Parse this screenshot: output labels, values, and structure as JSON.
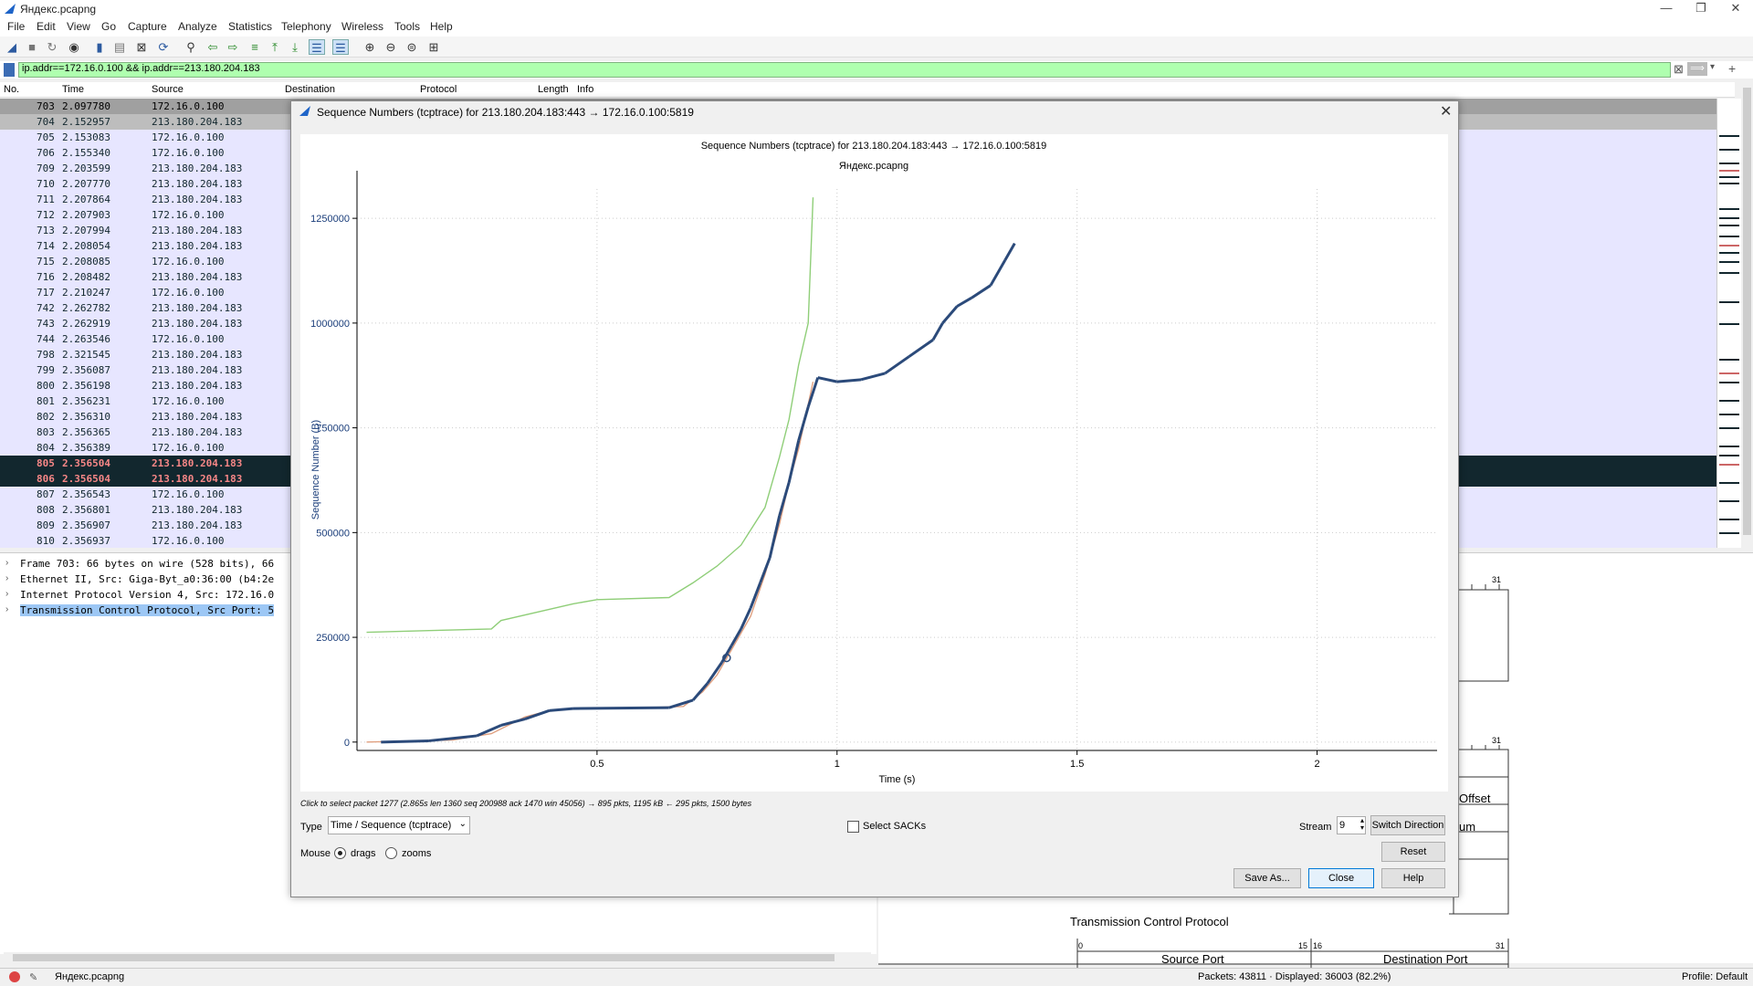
{
  "window": {
    "title": "Яндекс.pcapng"
  },
  "menu": [
    "File",
    "Edit",
    "View",
    "Go",
    "Capture",
    "Analyze",
    "Statistics",
    "Telephony",
    "Wireless",
    "Tools",
    "Help"
  ],
  "filter": {
    "value": "ip.addr==172.16.0.100 && ip.addr==213.180.204.183"
  },
  "packet_list": {
    "columns": [
      "No.",
      "Time",
      "Source",
      "Destination",
      "Protocol",
      "Length",
      "Info"
    ],
    "rows": [
      {
        "no": "703",
        "time": "2.097780",
        "src": "172.16.0.100",
        "style": "gray"
      },
      {
        "no": "704",
        "time": "2.152957",
        "src": "213.180.204.183",
        "style": "gray2"
      },
      {
        "no": "705",
        "time": "2.153083",
        "src": "172.16.0.100",
        "style": ""
      },
      {
        "no": "706",
        "time": "2.155340",
        "src": "172.16.0.100",
        "style": ""
      },
      {
        "no": "709",
        "time": "2.203599",
        "src": "213.180.204.183",
        "style": ""
      },
      {
        "no": "710",
        "time": "2.207770",
        "src": "213.180.204.183",
        "style": ""
      },
      {
        "no": "711",
        "time": "2.207864",
        "src": "213.180.204.183",
        "style": ""
      },
      {
        "no": "712",
        "time": "2.207903",
        "src": "172.16.0.100",
        "style": ""
      },
      {
        "no": "713",
        "time": "2.207994",
        "src": "213.180.204.183",
        "style": ""
      },
      {
        "no": "714",
        "time": "2.208054",
        "src": "213.180.204.183",
        "style": ""
      },
      {
        "no": "715",
        "time": "2.208085",
        "src": "172.16.0.100",
        "style": ""
      },
      {
        "no": "716",
        "time": "2.208482",
        "src": "213.180.204.183",
        "style": ""
      },
      {
        "no": "717",
        "time": "2.210247",
        "src": "172.16.0.100",
        "style": ""
      },
      {
        "no": "742",
        "time": "2.262782",
        "src": "213.180.204.183",
        "style": ""
      },
      {
        "no": "743",
        "time": "2.262919",
        "src": "213.180.204.183",
        "style": ""
      },
      {
        "no": "744",
        "time": "2.263546",
        "src": "172.16.0.100",
        "style": ""
      },
      {
        "no": "798",
        "time": "2.321545",
        "src": "213.180.204.183",
        "style": ""
      },
      {
        "no": "799",
        "time": "2.356087",
        "src": "213.180.204.183",
        "style": ""
      },
      {
        "no": "800",
        "time": "2.356198",
        "src": "213.180.204.183",
        "style": ""
      },
      {
        "no": "801",
        "time": "2.356231",
        "src": "172.16.0.100",
        "style": ""
      },
      {
        "no": "802",
        "time": "2.356310",
        "src": "213.180.204.183",
        "style": ""
      },
      {
        "no": "803",
        "time": "2.356365",
        "src": "213.180.204.183",
        "style": ""
      },
      {
        "no": "804",
        "time": "2.356389",
        "src": "172.16.0.100",
        "style": ""
      },
      {
        "no": "805",
        "time": "2.356504",
        "src": "213.180.204.183",
        "style": "black"
      },
      {
        "no": "806",
        "time": "2.356504",
        "src": "213.180.204.183",
        "style": "black"
      },
      {
        "no": "807",
        "time": "2.356543",
        "src": "172.16.0.100",
        "style": ""
      },
      {
        "no": "808",
        "time": "2.356801",
        "src": "213.180.204.183",
        "style": ""
      },
      {
        "no": "809",
        "time": "2.356907",
        "src": "213.180.204.183",
        "style": ""
      },
      {
        "no": "810",
        "time": "2.356937",
        "src": "172.16.0.100",
        "style": ""
      }
    ]
  },
  "details": [
    "Frame 703: 66 bytes on wire (528 bits), 66",
    "Ethernet II, Src: Giga-Byt_a0:36:00 (b4:2e",
    "Internet Protocol Version 4, Src: 172.16.0",
    "Transmission Control Protocol, Src Port: 5"
  ],
  "bytes_pane": {
    "tcp_label": "Transmission Control Protocol",
    "src_port": "Source Port",
    "dst_port": "Destination Port",
    "offset": "Offset",
    "um": "um",
    "bit0": "0",
    "bit15": "15",
    "bit16": "16",
    "bit31": "31"
  },
  "status": {
    "file": "Яндекс.pcapng",
    "packets": "Packets: 43811 · Displayed: 36003 (82.2%)",
    "profile": "Profile: Default"
  },
  "dialog": {
    "title": "Sequence Numbers (tcptrace) for 213.180.204.183:443 → 172.16.0.100:5819",
    "hint": "Click to select packet 1277 (2.865s len 1360 seq 200988 ack 1470 win 45056) → 895 pkts, 1195 kB ← 295 pkts, 1500 bytes",
    "type_label": "Type",
    "type_value": "Time / Sequence (tcptrace)",
    "select_sacks": "Select SACKs",
    "stream_label": "Stream",
    "stream_value": "9",
    "switch_direction": "Switch Direction",
    "reset": "Reset",
    "mouse_label": "Mouse",
    "drags": "drags",
    "zooms": "zooms",
    "save_as": "Save As...",
    "close": "Close",
    "help": "Help"
  },
  "chart_data": {
    "type": "line",
    "title": "Sequence Numbers (tcptrace) for 213.180.204.183:443 → 172.16.0.100:5819",
    "subtitle": "Яндекс.pcapng",
    "xlabel": "Time (s)",
    "ylabel": "Sequence Number (B)",
    "xlim": [
      0.0,
      2.25
    ],
    "ylim": [
      -20000,
      1320000
    ],
    "xticks": [
      0.5,
      1,
      1.5,
      2
    ],
    "yticks": [
      0,
      250000,
      500000,
      750000,
      1000000,
      1250000
    ],
    "ytick_labels": [
      "0",
      "250000",
      "500000",
      "750000",
      "1000000",
      "1250000"
    ],
    "xtick_labels": [
      "0.5",
      "1",
      "1.5",
      "2"
    ],
    "grid": true,
    "colors": {
      "segments": "#2b4a7a",
      "window": "#8fce78",
      "ack": "#e0a080"
    },
    "series": [
      {
        "name": "",
        "role": "window",
        "points": [
          [
            0.02,
            262000
          ],
          [
            0.15,
            266000
          ],
          [
            0.28,
            270000
          ],
          [
            0.3,
            290000
          ],
          [
            0.45,
            330000
          ],
          [
            0.5,
            340000
          ],
          [
            0.65,
            345000
          ],
          [
            0.7,
            380000
          ],
          [
            0.75,
            420000
          ],
          [
            0.8,
            470000
          ],
          [
            0.85,
            560000
          ],
          [
            0.88,
            680000
          ],
          [
            0.9,
            770000
          ],
          [
            0.92,
            900000
          ],
          [
            0.94,
            1000000
          ],
          [
            0.95,
            1300000
          ]
        ]
      },
      {
        "name": "",
        "role": "ack",
        "points": [
          [
            0.02,
            0
          ],
          [
            0.2,
            5000
          ],
          [
            0.28,
            20000
          ],
          [
            0.35,
            60000
          ],
          [
            0.4,
            75000
          ],
          [
            0.45,
            80000
          ],
          [
            0.6,
            82000
          ],
          [
            0.68,
            85000
          ],
          [
            0.72,
            120000
          ],
          [
            0.75,
            160000
          ],
          [
            0.78,
            220000
          ],
          [
            0.82,
            300000
          ],
          [
            0.85,
            400000
          ],
          [
            0.88,
            520000
          ],
          [
            0.9,
            620000
          ],
          [
            0.92,
            700000
          ],
          [
            0.95,
            860000
          ]
        ]
      },
      {
        "name": "",
        "role": "segments",
        "points": [
          [
            0.05,
            0
          ],
          [
            0.15,
            3000
          ],
          [
            0.25,
            15000
          ],
          [
            0.3,
            40000
          ],
          [
            0.35,
            55000
          ],
          [
            0.4,
            75000
          ],
          [
            0.45,
            80000
          ],
          [
            0.65,
            82000
          ],
          [
            0.7,
            100000
          ],
          [
            0.73,
            140000
          ],
          [
            0.76,
            190000
          ],
          [
            0.78,
            230000
          ],
          [
            0.8,
            270000
          ],
          [
            0.82,
            320000
          ],
          [
            0.84,
            380000
          ],
          [
            0.86,
            440000
          ],
          [
            0.88,
            540000
          ],
          [
            0.9,
            620000
          ],
          [
            0.92,
            720000
          ],
          [
            0.94,
            800000
          ],
          [
            0.96,
            870000
          ],
          [
            1.0,
            860000
          ],
          [
            1.05,
            865000
          ],
          [
            1.1,
            880000
          ],
          [
            1.15,
            920000
          ],
          [
            1.2,
            960000
          ],
          [
            1.22,
            1000000
          ],
          [
            1.25,
            1040000
          ],
          [
            1.28,
            1060000
          ],
          [
            1.32,
            1090000
          ],
          [
            1.35,
            1150000
          ],
          [
            1.37,
            1190000
          ]
        ]
      }
    ],
    "marker": {
      "x": 0.77,
      "y": 200988
    }
  }
}
